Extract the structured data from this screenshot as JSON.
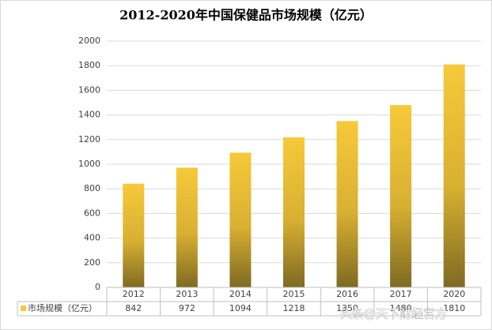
{
  "chart_data": {
    "type": "bar",
    "title": "2012-2020年中国保健品市场规模（亿元）",
    "categories": [
      "2012",
      "2013",
      "2014",
      "2015",
      "2016",
      "2017",
      "2020"
    ],
    "series": [
      {
        "name": "市场规模（亿元）",
        "color": "#f7c93a",
        "values": [
          842,
          972,
          1094,
          1218,
          1350,
          1480,
          1810
        ]
      }
    ],
    "ylim": [
      0,
      2000
    ],
    "yticks": [
      0,
      200,
      400,
      600,
      800,
      1000,
      1200,
      1400,
      1600,
      1800,
      2000
    ],
    "grid": true,
    "data_table": true
  },
  "watermark": "头条@天下财经官方"
}
